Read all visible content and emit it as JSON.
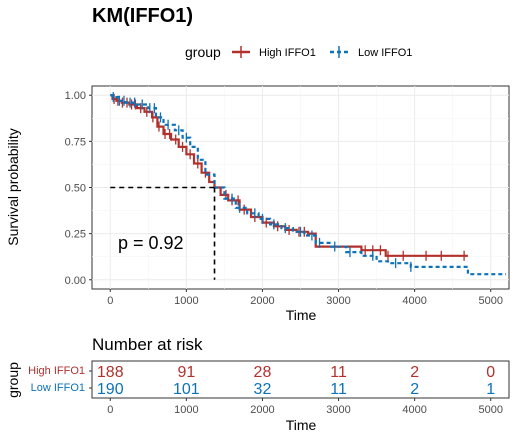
{
  "chart_data": {
    "type": "line",
    "title": "KM(IFFO1)",
    "xlabel": "Time",
    "ylabel": "Survival probability",
    "xlim": [
      -240,
      5240
    ],
    "ylim": [
      -0.05,
      1.05
    ],
    "x_ticks": [
      0,
      1000,
      2000,
      3000,
      4000,
      5000
    ],
    "y_ticks": [
      0.0,
      0.25,
      0.5,
      0.75,
      1.0
    ],
    "y_tick_labels": [
      "0.00",
      "0.25",
      "0.50",
      "0.75",
      "1.00"
    ],
    "grid": true,
    "legend": {
      "title": "group",
      "position": "top"
    },
    "p_value": "p = 0.92",
    "median_survival": {
      "x": 1370,
      "y": 0.5
    },
    "series": [
      {
        "name": "High IFFO1",
        "color": "#B2312D",
        "dash": "solid",
        "points": [
          [
            0,
            1.0
          ],
          [
            30,
            0.98
          ],
          [
            80,
            0.97
          ],
          [
            150,
            0.96
          ],
          [
            250,
            0.95
          ],
          [
            350,
            0.93
          ],
          [
            450,
            0.91
          ],
          [
            550,
            0.88
          ],
          [
            620,
            0.83
          ],
          [
            700,
            0.79
          ],
          [
            800,
            0.76
          ],
          [
            900,
            0.72
          ],
          [
            1000,
            0.68
          ],
          [
            1100,
            0.63
          ],
          [
            1200,
            0.58
          ],
          [
            1300,
            0.53
          ],
          [
            1370,
            0.5
          ],
          [
            1450,
            0.46
          ],
          [
            1550,
            0.43
          ],
          [
            1700,
            0.38
          ],
          [
            1850,
            0.34
          ],
          [
            2000,
            0.31
          ],
          [
            2150,
            0.29
          ],
          [
            2300,
            0.27
          ],
          [
            2450,
            0.26
          ],
          [
            2600,
            0.25
          ],
          [
            2700,
            0.18
          ],
          [
            3000,
            0.18
          ],
          [
            3200,
            0.18
          ],
          [
            3300,
            0.16
          ],
          [
            3600,
            0.16
          ],
          [
            3620,
            0.13
          ],
          [
            4000,
            0.13
          ],
          [
            4500,
            0.13
          ],
          [
            4700,
            0.13
          ]
        ],
        "censor_x": [
          50,
          100,
          160,
          220,
          280,
          330,
          400,
          480,
          560,
          640,
          720,
          780,
          860,
          950,
          1050,
          1150,
          1250,
          1520,
          1600,
          1680,
          1760,
          1900,
          2050,
          2200,
          2350,
          2480,
          2550,
          3350,
          3450,
          3550,
          3650,
          3850,
          4150,
          4350,
          4650
        ]
      },
      {
        "name": "Low IFFO1",
        "color": "#0C72BA",
        "dash": "dashed",
        "points": [
          [
            0,
            1.0
          ],
          [
            30,
            0.99
          ],
          [
            100,
            0.97
          ],
          [
            200,
            0.96
          ],
          [
            350,
            0.95
          ],
          [
            500,
            0.93
          ],
          [
            600,
            0.88
          ],
          [
            700,
            0.84
          ],
          [
            850,
            0.81
          ],
          [
            950,
            0.77
          ],
          [
            1050,
            0.72
          ],
          [
            1150,
            0.65
          ],
          [
            1250,
            0.57
          ],
          [
            1370,
            0.5
          ],
          [
            1500,
            0.44
          ],
          [
            1650,
            0.39
          ],
          [
            1800,
            0.36
          ],
          [
            1950,
            0.33
          ],
          [
            2100,
            0.3
          ],
          [
            2250,
            0.28
          ],
          [
            2400,
            0.26
          ],
          [
            2550,
            0.24
          ],
          [
            2700,
            0.2
          ],
          [
            2900,
            0.18
          ],
          [
            3100,
            0.15
          ],
          [
            3300,
            0.13
          ],
          [
            3500,
            0.1
          ],
          [
            3650,
            0.09
          ],
          [
            3900,
            0.09
          ],
          [
            3950,
            0.07
          ],
          [
            4400,
            0.07
          ],
          [
            4700,
            0.03
          ],
          [
            5200,
            0.03
          ]
        ],
        "censor_x": [
          40,
          120,
          180,
          260,
          320,
          420,
          520,
          580,
          660,
          760,
          900,
          1000,
          1600,
          1700,
          1900,
          2000,
          2150,
          2300,
          2500,
          2650,
          2750,
          2950,
          3150,
          3450,
          3750,
          3950
        ]
      }
    ],
    "risk_table": {
      "title": "Number at risk",
      "ylabel": "group",
      "xlabel": "Time",
      "times": [
        0,
        1000,
        2000,
        3000,
        4000,
        5000
      ],
      "rows": [
        {
          "group": "High IFFO1",
          "color": "#B2312D",
          "counts": [
            188,
            91,
            28,
            11,
            2,
            0
          ]
        },
        {
          "group": "Low IFFO1",
          "color": "#0C72BA",
          "counts": [
            190,
            101,
            32,
            11,
            2,
            1
          ]
        }
      ]
    }
  }
}
